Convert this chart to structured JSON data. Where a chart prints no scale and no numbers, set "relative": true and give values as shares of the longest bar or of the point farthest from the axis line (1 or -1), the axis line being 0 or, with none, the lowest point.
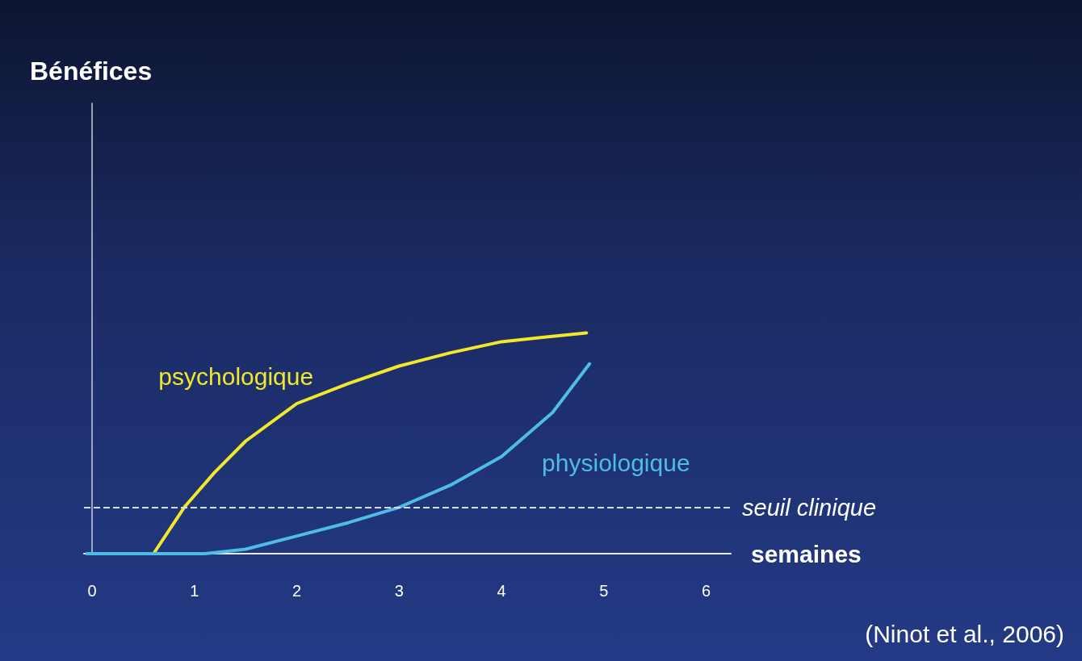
{
  "chart_data": {
    "type": "line",
    "relative": true,
    "xlabel": "semaines",
    "xlim": [
      -0.08,
      6.24
    ],
    "xticks": [
      0,
      1,
      2,
      3,
      4,
      5,
      6
    ],
    "legend": false,
    "marker": "none",
    "line_style": "solid",
    "series": [
      {
        "name": "psychologique",
        "color": "#f2e82a",
        "x": [
          -0.05,
          0.6,
          0.9,
          1.2,
          1.5,
          2,
          2.5,
          3,
          3.5,
          4,
          4.4,
          4.83
        ],
        "values": [
          0,
          0,
          0.21,
          0.37,
          0.51,
          0.68,
          0.77,
          0.85,
          0.91,
          0.96,
          0.98,
          1
        ]
      },
      {
        "name": "physiologique",
        "color": "#4dbde8",
        "x": [
          -0.05,
          1.1,
          1.5,
          2,
          2.5,
          3,
          3.5,
          4,
          4.5,
          4.86
        ],
        "values": [
          0,
          0,
          0.02,
          0.08,
          0.14,
          0.21,
          0.31,
          0.44,
          0.64,
          0.86
        ]
      }
    ],
    "ref_lines": [
      {
        "axis": "y",
        "value": 0.21,
        "label": "seuil clinique",
        "color": "#d8dce8",
        "line_style": "dashed"
      }
    ],
    "annotations": [
      "Bénéfices",
      "(Ninot et al., 2006)"
    ]
  }
}
